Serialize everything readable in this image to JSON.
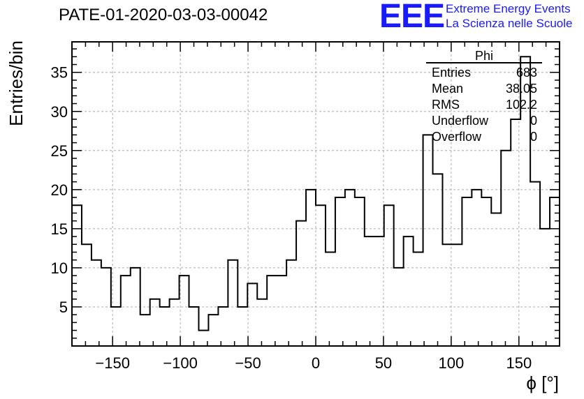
{
  "header": {
    "run_title": "PATE-01-2020-03-03-00042"
  },
  "logo": {
    "mark": "EEE",
    "line1": "Extreme Energy Events",
    "line2": "La Scienza nelle Scuole",
    "color": "#1a1aff"
  },
  "chart_data": {
    "type": "histogram",
    "title": "PATE-01-2020-03-03-00042",
    "xlabel": "ϕ [°]",
    "ylabel": "Entries/bin",
    "xlim": [
      -180,
      180
    ],
    "ylim": [
      0,
      38.9
    ],
    "grid": true,
    "bin_width": 7.2,
    "x_ticks": [
      -150,
      -100,
      -50,
      0,
      50,
      100,
      150
    ],
    "x_tick_labels": [
      "−150",
      "−100",
      "−50",
      "0",
      "50",
      "100",
      "150"
    ],
    "y_ticks": [
      5,
      10,
      15,
      20,
      25,
      30,
      35
    ],
    "y_tick_labels": [
      "5",
      "10",
      "15",
      "20",
      "25",
      "30",
      "35"
    ],
    "counts": [
      18,
      13,
      11,
      10,
      5,
      9,
      10,
      4,
      6,
      5,
      6,
      9,
      5,
      2,
      4,
      5,
      11,
      5,
      8,
      6,
      9,
      9,
      11,
      16,
      20,
      18,
      12,
      19,
      20,
      19,
      14,
      14,
      18,
      10,
      14,
      12,
      27,
      22,
      13,
      13,
      19,
      20,
      19,
      17,
      25,
      29,
      37,
      21,
      15,
      19
    ],
    "stats_box": {
      "name": "Phi",
      "rows": [
        {
          "label": "Entries",
          "value": "683"
        },
        {
          "label": "Mean",
          "value": "38.05"
        },
        {
          "label": "RMS",
          "value": "102.2"
        },
        {
          "label": "Underflow",
          "value": "0"
        },
        {
          "label": "Overflow",
          "value": "0"
        }
      ]
    }
  }
}
